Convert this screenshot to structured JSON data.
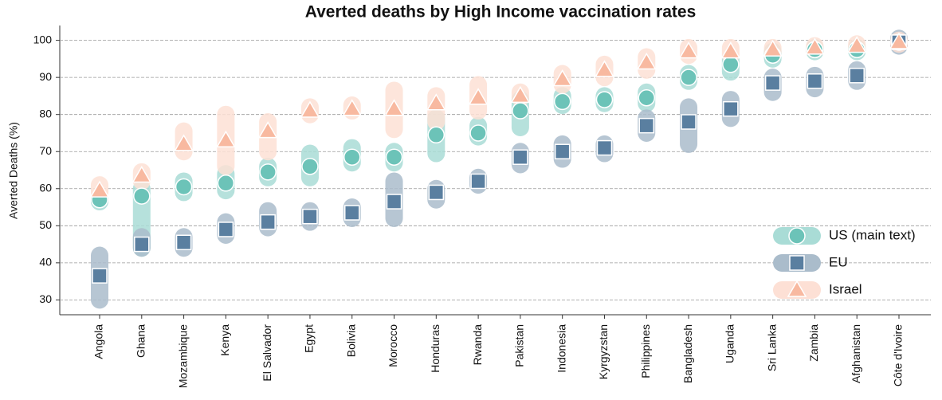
{
  "chart_data": {
    "type": "range-dot",
    "title": "Averted deaths by High Income vaccination rates",
    "y_label": "Averted Deaths (%)",
    "categories": [
      "Angola",
      "Ghana",
      "Mozambique",
      "Kenya",
      "El Salvador",
      "Egypt",
      "Bolivia",
      "Morocco",
      "Honduras",
      "Rwanda",
      "Pakistan",
      "Indonesia",
      "Kyrgyzstan",
      "Philippines",
      "Bangladesh",
      "Uganda",
      "Sri Lanka",
      "Zambia",
      "Afghanistan",
      "Côte d'Ivoire"
    ],
    "ylim": [
      26,
      104
    ],
    "yticks": [
      30,
      40,
      50,
      60,
      70,
      80,
      90,
      100
    ],
    "grid": true,
    "legend": "lower right",
    "series": [
      {
        "name": "US (main text)",
        "marker": "circle",
        "color": "#6cc3b8",
        "range_color": "#a9dcd6",
        "values": [
          57,
          58,
          60.5,
          61.5,
          64.5,
          66,
          68.5,
          68.5,
          74.5,
          75,
          81,
          83.5,
          84,
          84.5,
          90,
          93.5,
          96,
          97.5,
          97.5,
          99.5
        ],
        "low": [
          56.5,
          44,
          59,
          59.5,
          63,
          63,
          67,
          67,
          69.5,
          74,
          76.5,
          82.5,
          83,
          83,
          89,
          91.5,
          95,
          97,
          97,
          99
        ],
        "high": [
          57.5,
          60,
          62,
          64,
          66,
          69.5,
          71,
          70,
          79,
          77,
          84,
          85,
          85,
          86,
          91,
          95,
          97,
          98,
          98,
          100
        ]
      },
      {
        "name": "EU",
        "marker": "square",
        "color": "#5a7fa0",
        "range_color": "#aabccb",
        "values": [
          36.5,
          45,
          45.5,
          49,
          51,
          52.5,
          53.5,
          56.5,
          59,
          62,
          68.5,
          70,
          71,
          77,
          78,
          81.5,
          88.5,
          89,
          90.5,
          99.5
        ],
        "low": [
          30,
          44,
          44,
          47.5,
          49.5,
          51,
          52,
          52,
          57,
          61,
          66.5,
          68,
          69.5,
          75,
          72,
          79,
          86,
          87,
          89,
          98.5
        ],
        "high": [
          42,
          47,
          47,
          51,
          54,
          54,
          55,
          62,
          60,
          63,
          70,
          72,
          72,
          79,
          82,
          84,
          90,
          90.5,
          92,
          100.5
        ]
      },
      {
        "name": "Israel",
        "marker": "triangle",
        "color": "#f8b9a0",
        "range_color": "#fde0d5",
        "values": [
          59.5,
          63.5,
          72,
          73,
          75.5,
          81,
          81.5,
          81.5,
          83,
          84.5,
          85,
          89.5,
          92,
          94,
          97,
          97,
          97.5,
          98,
          98.5,
          99.5
        ],
        "low": [
          59,
          62,
          70,
          66,
          70,
          80,
          81,
          76,
          78,
          81,
          84.5,
          88,
          90,
          92,
          96,
          96,
          97,
          97.5,
          98,
          99
        ],
        "high": [
          61,
          64.5,
          75.5,
          80,
          78,
          82,
          82.5,
          86.5,
          85,
          88,
          86,
          91,
          93.5,
          95.5,
          98,
          98,
          98,
          98.5,
          99,
          100
        ]
      }
    ]
  }
}
